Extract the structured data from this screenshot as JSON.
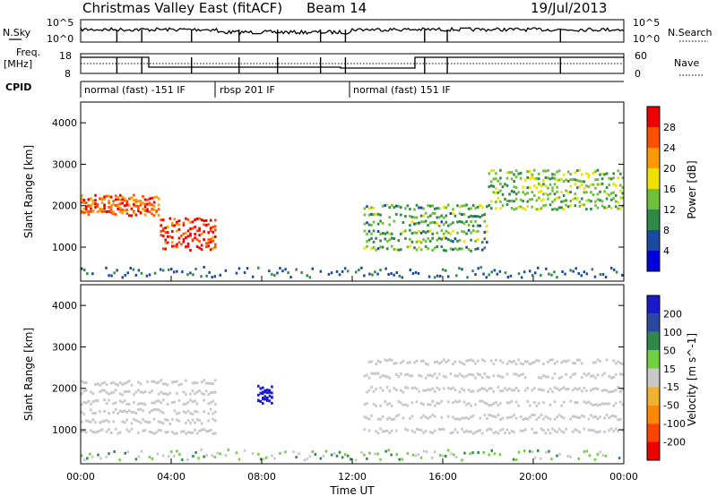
{
  "header": {
    "title": "Christmas Valley East (fitACF)",
    "beam": "Beam 14",
    "date": "19/Jul/2013"
  },
  "housekeeping": {
    "nsky_label": "N.Sky",
    "nsky_ticks": [
      "10^5",
      "10^0"
    ],
    "nsearch_label": "N.Search",
    "nsearch_ticks": [
      "10^5",
      "10^0"
    ],
    "freq_label": "Freq.",
    "freq_unit": "[MHz]",
    "freq_ticks": [
      "18",
      "8"
    ],
    "nave_label": "Nave",
    "nave_ticks": [
      "60",
      "0"
    ],
    "cpid_label": "CPID",
    "cpid_modes": [
      "normal (fast) -151 IF",
      "rbsp 201 IF",
      "normal (fast) 151 IF"
    ]
  },
  "colors": {
    "power": [
      "#0000dd",
      "#1a4aa0",
      "#2f8a4a",
      "#6fbf3a",
      "#f0e000",
      "#ff9900",
      "#ff5000",
      "#ee0000"
    ],
    "velocity": [
      "#1a1acc",
      "#2a4aa0",
      "#2f8a4a",
      "#70d040",
      "#c8c8c8",
      "#f0b030",
      "#ff8800",
      "#ff4400",
      "#ee0000"
    ]
  },
  "chart_data": [
    {
      "type": "heatmap",
      "title": "Power",
      "xlabel": "Time UT",
      "ylabel": "Slant Range [km]",
      "x_ticks": [
        "00:00",
        "04:00",
        "08:00",
        "12:00",
        "16:00",
        "20:00",
        "00:00"
      ],
      "xlim": [
        0,
        24
      ],
      "ylim": [
        180,
        4500
      ],
      "y_ticks": [
        1000,
        2000,
        3000,
        4000
      ],
      "colorbar": {
        "label": "Power [dB]",
        "ticks": [
          4,
          8,
          12,
          16,
          20,
          24,
          28
        ],
        "range": [
          0,
          32
        ]
      },
      "features": [
        {
          "region": "morning band",
          "t_range": [
            0,
            3.5
          ],
          "range_km": [
            1850,
            2300
          ],
          "power_db": 26
        },
        {
          "region": "descending band",
          "t_range": [
            3.5,
            6
          ],
          "range_km": [
            1000,
            1800
          ],
          "power_db": 28
        },
        {
          "region": "afternoon band",
          "t_range": [
            12.5,
            18
          ],
          "range_km": [
            1000,
            2200
          ],
          "power_db": 12
        },
        {
          "region": "evening band",
          "t_range": [
            18,
            24
          ],
          "range_km": [
            2000,
            3000
          ],
          "power_db": 14
        }
      ]
    },
    {
      "type": "heatmap",
      "title": "Velocity",
      "xlabel": "Time UT",
      "ylabel": "Slant Range [km]",
      "x_ticks": [
        "00:00",
        "04:00",
        "08:00",
        "12:00",
        "16:00",
        "20:00",
        "00:00"
      ],
      "xlim": [
        0,
        24
      ],
      "ylim": [
        180,
        4500
      ],
      "y_ticks": [
        1000,
        2000,
        3000,
        4000
      ],
      "colorbar": {
        "label": "Velocity [m s^-1]",
        "ticks": [
          "200",
          "100",
          "50",
          "15",
          "-15",
          "-50",
          "-100",
          "-200"
        ]
      },
      "features": [
        {
          "region": "near-zero band",
          "t_range": [
            0,
            6
          ],
          "range_km": [
            1000,
            2400
          ],
          "velocity": 0
        },
        {
          "region": "approaching patch",
          "t_range": [
            7.8,
            8.5
          ],
          "range_km": [
            1700,
            2100
          ],
          "velocity": 200
        },
        {
          "region": "ground scatter",
          "t_range": [
            12.5,
            24
          ],
          "range_km": [
            1000,
            3000
          ],
          "velocity": 0
        }
      ]
    }
  ]
}
